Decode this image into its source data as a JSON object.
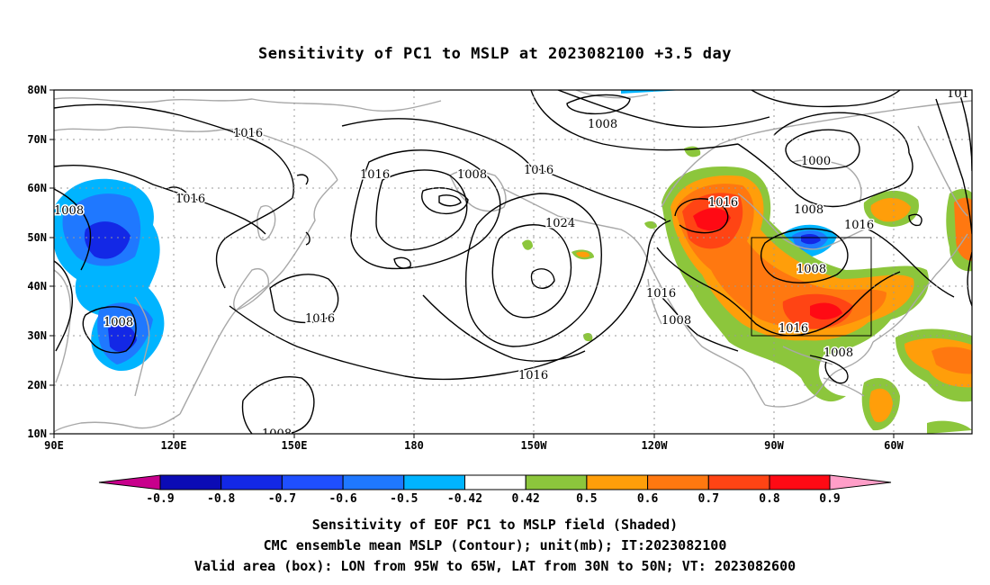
{
  "title": "Sensitivity of PC1 to MSLP at 2023082100 +3.5 day",
  "lat_labels": [
    "80N",
    "70N",
    "60N",
    "50N",
    "40N",
    "30N",
    "20N",
    "10N"
  ],
  "lon_labels": [
    "90E",
    "120E",
    "150E",
    "180",
    "150W",
    "120W",
    "90W",
    "60W"
  ],
  "contour_labels": [
    "1008",
    "1016",
    "1016",
    "1016",
    "1008",
    "1016",
    "1008",
    "1016",
    "1024",
    "1016",
    "1016",
    "1008",
    "1016",
    "1008",
    "1016",
    "1008",
    "1000",
    "1016",
    "1008",
    "1016",
    "1008",
    "1008",
    "101"
  ],
  "colorbar": {
    "labels": [
      "-0.9",
      "-0.8",
      "-0.7",
      "-0.6",
      "-0.5",
      "-0.42",
      "0.42",
      "0.5",
      "0.6",
      "0.7",
      "0.8",
      "0.9"
    ],
    "colors": [
      "#c8008c",
      "#0b0bb5",
      "#1328e6",
      "#1f4fff",
      "#1f78ff",
      "#00b4ff",
      "#ffffff",
      "#8cc63c",
      "#ff9e0a",
      "#ff7810",
      "#ff4414",
      "#ff0a14",
      "#ff9ec8"
    ]
  },
  "valid_box": {
    "lon_min": "95W",
    "lon_max": "65W",
    "lat_min": "30N",
    "lat_max": "50N"
  },
  "captions": [
    "Sensitivity of EOF PC1 to MSLP field (Shaded)",
    "CMC ensemble mean MSLP (Contour); unit(mb); IT:2023082100",
    "Valid area (box): LON from 95W to 65W, LAT from 30N to 50N; VT: 2023082600"
  ]
}
